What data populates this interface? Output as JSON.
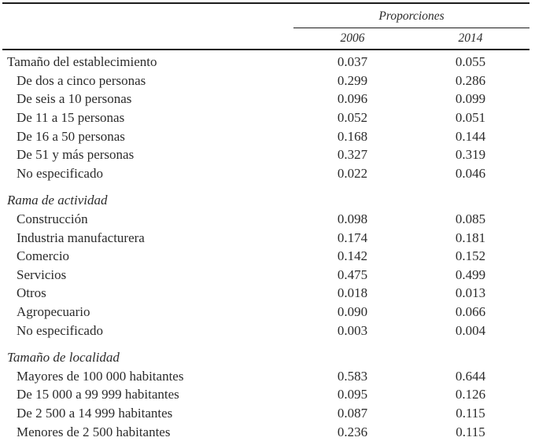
{
  "table": {
    "header": {
      "group_label": "Proporciones",
      "years": [
        "2006",
        "2014"
      ]
    },
    "sections": [
      {
        "title": "Tamaño del establecimiento",
        "italic": false,
        "values": [
          "0.037",
          "0.055"
        ],
        "rows": [
          {
            "label": "De dos a cinco personas",
            "values": [
              "0.299",
              "0.286"
            ]
          },
          {
            "label": "De seis a 10 personas",
            "values": [
              "0.096",
              "0.099"
            ]
          },
          {
            "label": "De 11 a 15 personas",
            "values": [
              "0.052",
              "0.051"
            ]
          },
          {
            "label": "De 16 a 50 personas",
            "values": [
              "0.168",
              "0.144"
            ]
          },
          {
            "label": "De 51 y más personas",
            "values": [
              "0.327",
              "0.319"
            ]
          },
          {
            "label": "No especificado",
            "values": [
              "0.022",
              "0.046"
            ]
          }
        ]
      },
      {
        "title": "Rama de actividad",
        "italic": true,
        "values": null,
        "rows": [
          {
            "label": "Construcción",
            "values": [
              "0.098",
              "0.085"
            ]
          },
          {
            "label": "Industria manufacturera",
            "values": [
              "0.174",
              "0.181"
            ]
          },
          {
            "label": "Comercio",
            "values": [
              "0.142",
              "0.152"
            ]
          },
          {
            "label": "Servicios",
            "values": [
              "0.475",
              "0.499"
            ]
          },
          {
            "label": "Otros",
            "values": [
              "0.018",
              "0.013"
            ]
          },
          {
            "label": "Agropecuario",
            "values": [
              "0.090",
              "0.066"
            ]
          },
          {
            "label": "No especificado",
            "values": [
              "0.003",
              "0.004"
            ]
          }
        ]
      },
      {
        "title": "Tamaño de localidad",
        "italic": true,
        "values": null,
        "rows": [
          {
            "label": "Mayores de 100 000 habitantes",
            "values": [
              "0.583",
              "0.644"
            ]
          },
          {
            "label": "De 15 000 a 99 999 habitantes",
            "values": [
              "0.095",
              "0.126"
            ]
          },
          {
            "label": "De 2 500 a 14 999 habitantes",
            "values": [
              "0.087",
              "0.115"
            ]
          },
          {
            "label": "Menores de 2 500 habitantes",
            "values": [
              "0.236",
              "0.115"
            ]
          }
        ]
      }
    ]
  }
}
